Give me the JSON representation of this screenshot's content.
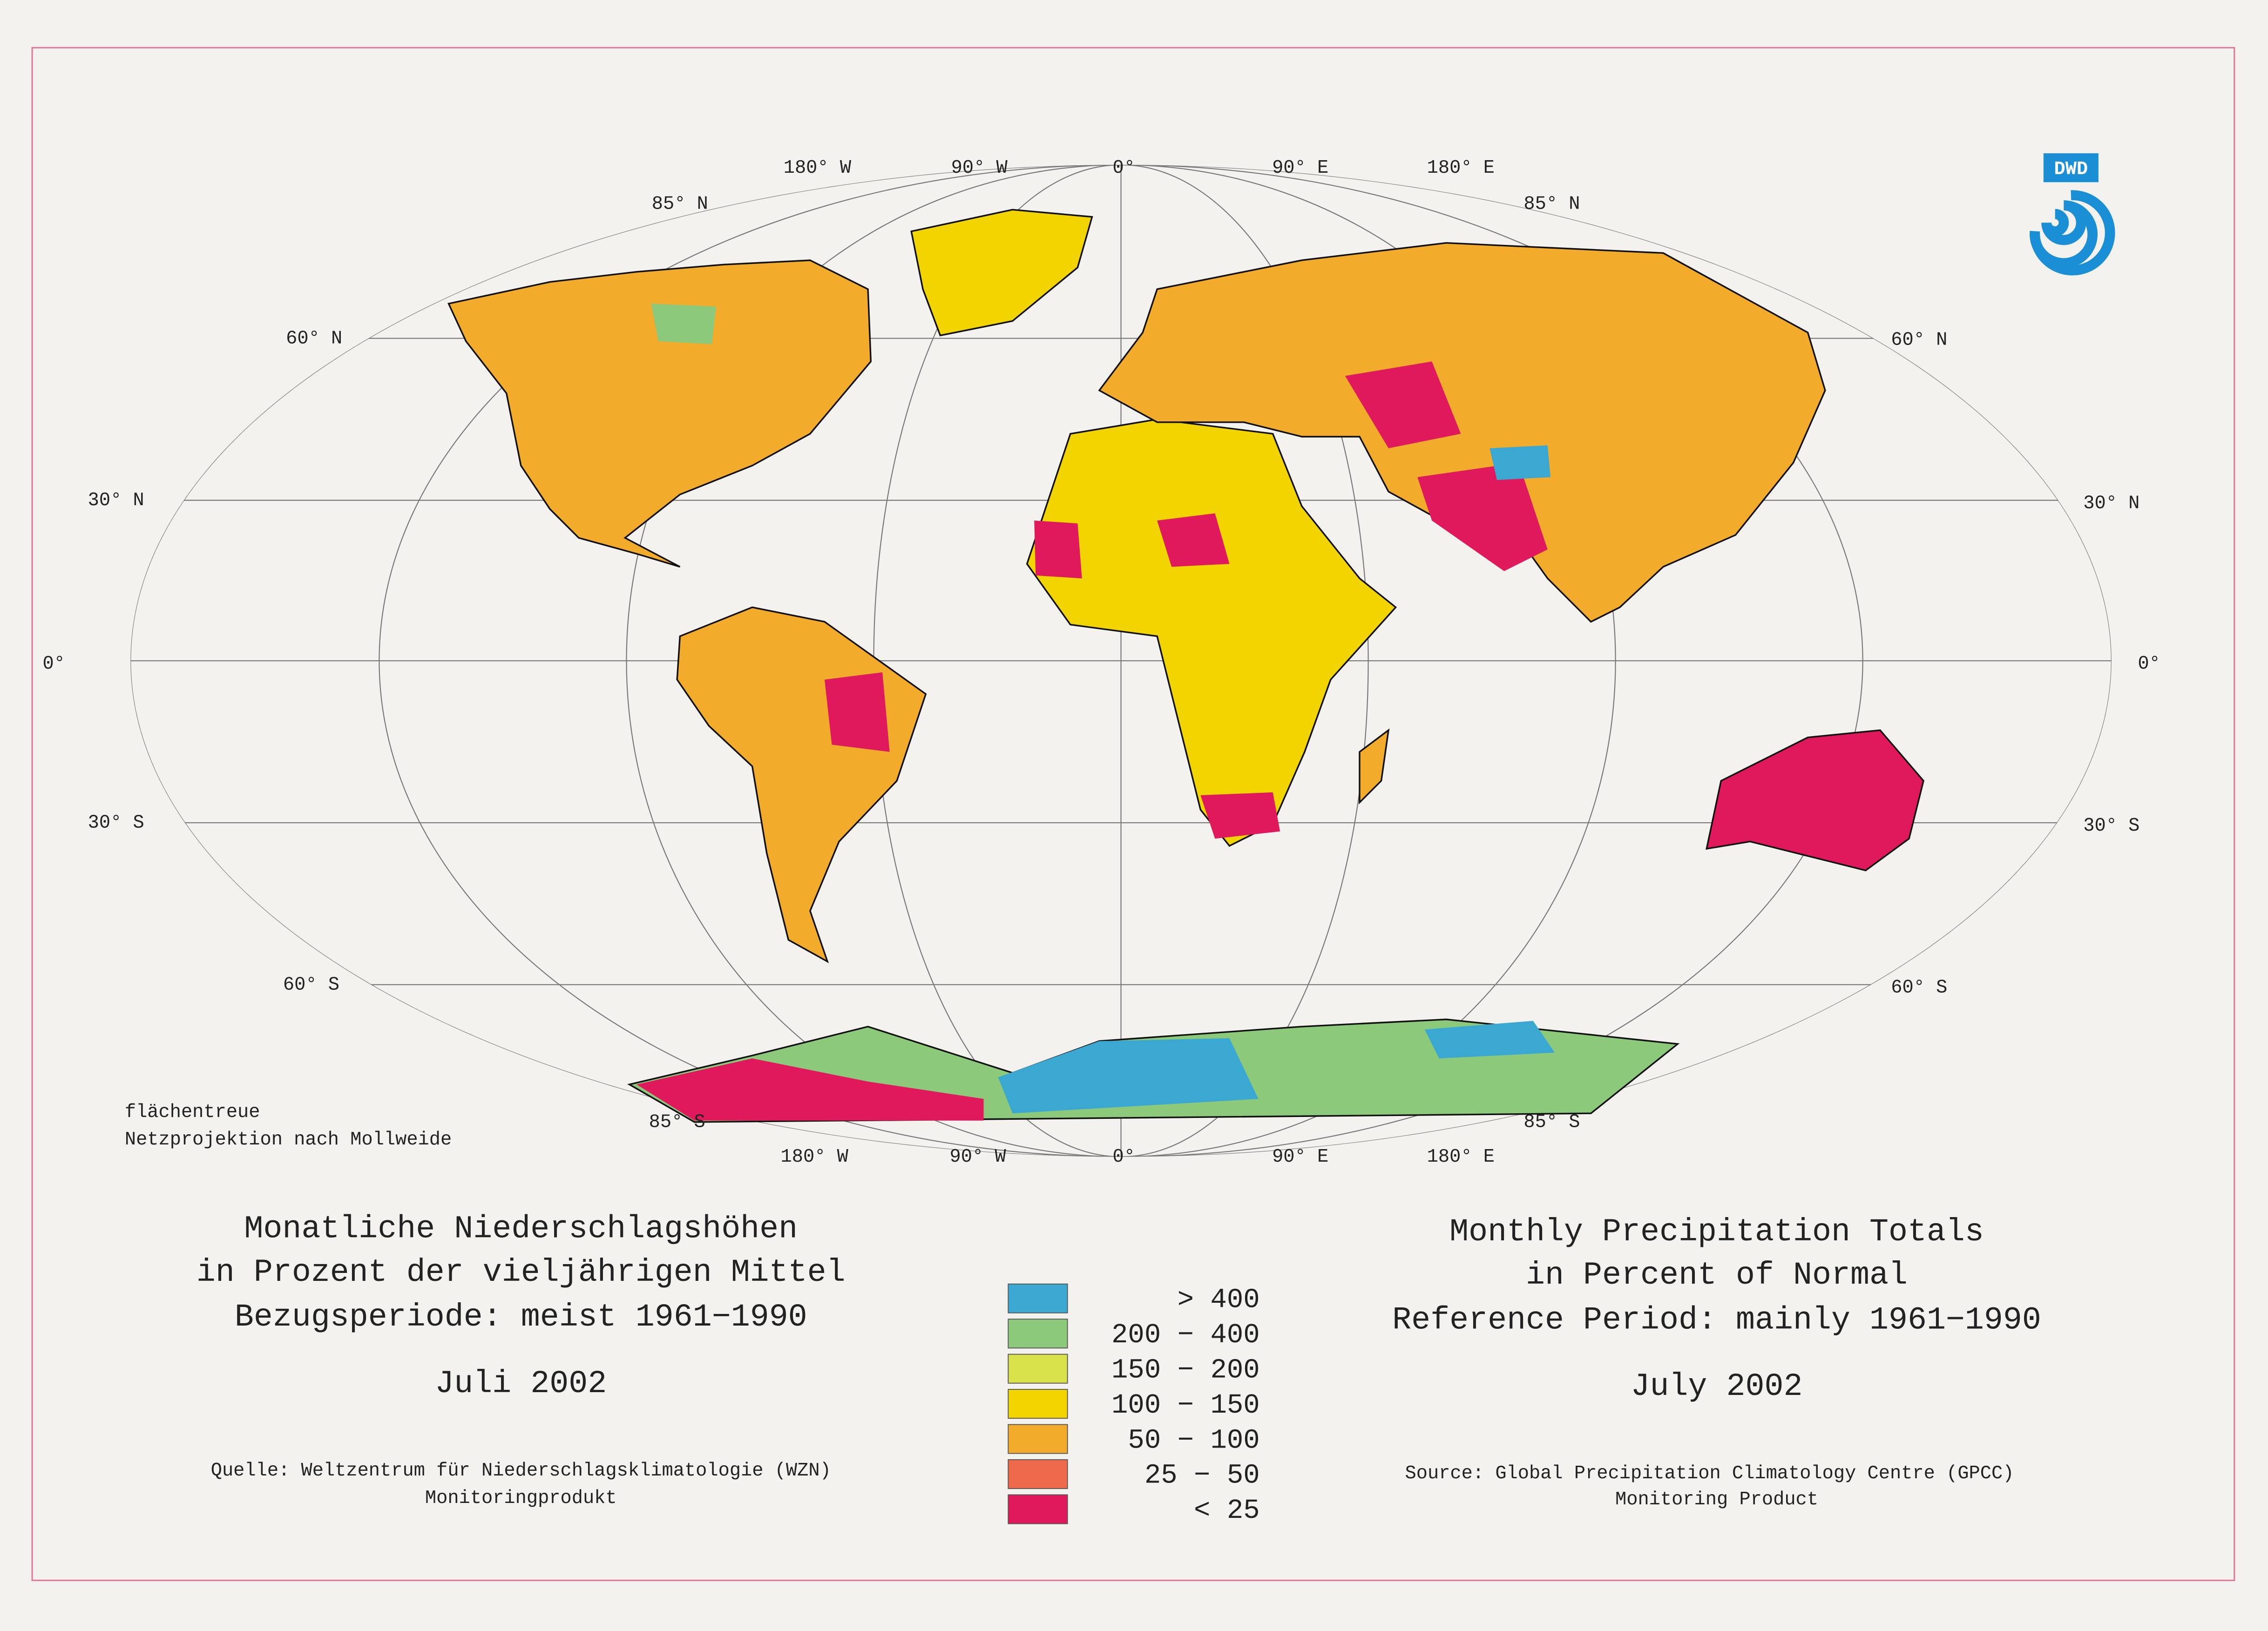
{
  "logo": "DWD",
  "map": {
    "lon_labels_top": [
      "180° W",
      "90° W",
      "0°",
      "90° E",
      "180° E"
    ],
    "lon_labels_bottom": [
      "180° W",
      "90° W",
      "0°",
      "90° E",
      "180° E"
    ],
    "lat_labels_left": [
      "85° N",
      "60° N",
      "30° N",
      "0°",
      "30° S",
      "60° S",
      "85° S"
    ],
    "lat_labels_right": [
      "85° N",
      "60° N",
      "30° N",
      "0°",
      "30° S",
      "60° S",
      "85° S"
    ],
    "projection_note": [
      "flächentreue",
      "Netzprojektion nach Mollweide"
    ]
  },
  "title_de": {
    "lines": [
      "Monatliche Niederschlagshöhen",
      "in Prozent der vieljährigen Mittel",
      "Bezugsperiode: meist 1961−1990"
    ],
    "month": "Juli 2002",
    "source": [
      "Quelle: Weltzentrum für Niederschlagsklimatologie (WZN)",
      "Monitoringprodukt"
    ]
  },
  "title_en": {
    "lines": [
      "Monthly Precipitation Totals",
      "in Percent of Normal",
      "Reference Period: mainly 1961−1990"
    ],
    "month": "July 2002",
    "source": [
      "Source: Global Precipitation Climatology Centre (GPCC)",
      "Monitoring Product"
    ]
  },
  "legend": [
    {
      "label": ">   400",
      "color": "#3aa8d0"
    },
    {
      "label": "200 − 400",
      "color": "#8cc97a"
    },
    {
      "label": "150 − 200",
      "color": "#d8e04a"
    },
    {
      "label": "100 − 150",
      "color": "#f2d400"
    },
    {
      "label": "50 − 100",
      "color": "#f2ab2a"
    },
    {
      "label": "25 −  50",
      "color": "#ef6a4a"
    },
    {
      "label": "<    25",
      "color": "#e0195c"
    }
  ]
}
